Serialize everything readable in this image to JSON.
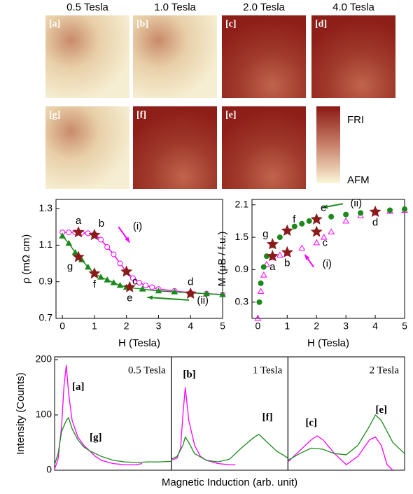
{
  "maps": {
    "columns": [
      "0.5 Tesla",
      "1.0 Tesla",
      "2.0 Tesla",
      "4.0 Tesla"
    ],
    "panels": [
      [
        "[a]",
        "[b]",
        "[c]",
        "[d]"
      ],
      [
        "[g]",
        "[f]",
        "[e]"
      ]
    ],
    "colorbar": [
      "FRI",
      "AFM"
    ]
  },
  "chart_data": [
    {
      "type": "scatter",
      "xlabel": "H (Tesla)",
      "ylabel": "ρ (mΩ cm)",
      "xlim": [
        -0.2,
        5
      ],
      "xticks": [
        0,
        1,
        2,
        3,
        4,
        5
      ],
      "ylim": [
        0.7,
        1.35
      ],
      "yticks": [
        0.7,
        0.9,
        1.1,
        1.3
      ],
      "series": [
        {
          "name": "(i)",
          "color": "#ff00ff",
          "marker": "circle-open",
          "line": true,
          "x": [
            0,
            0.2,
            0.4,
            0.6,
            0.8,
            1.0,
            1.2,
            1.4,
            1.6,
            1.8,
            2.0,
            2.2,
            2.4,
            2.6,
            2.8,
            3.0,
            3.5,
            4.0,
            4.5,
            5.0
          ],
          "values": [
            1.17,
            1.17,
            1.17,
            1.168,
            1.165,
            1.16,
            1.13,
            1.09,
            1.05,
            1.0,
            0.955,
            0.92,
            0.895,
            0.88,
            0.87,
            0.86,
            0.85,
            0.84,
            0.835,
            0.83
          ]
        },
        {
          "name": "(ii)",
          "color": "#1a8a1a",
          "marker": "triangle",
          "line": true,
          "x": [
            0,
            0.2,
            0.4,
            0.6,
            0.8,
            1.0,
            1.2,
            1.4,
            1.6,
            1.8,
            2.0,
            2.5,
            3.0,
            3.5,
            4.0,
            4.5,
            5.0
          ],
          "values": [
            1.15,
            1.11,
            1.06,
            1.02,
            0.98,
            0.945,
            0.925,
            0.91,
            0.895,
            0.88,
            0.87,
            0.86,
            0.85,
            0.845,
            0.84,
            0.835,
            0.83
          ]
        },
        {
          "color": "#8b1a1a",
          "marker": "star",
          "labels": [
            "a",
            "b",
            "c",
            "d",
            "e",
            "f",
            "g"
          ],
          "x": [
            0.5,
            1.0,
            2.0,
            4.0,
            2.1,
            1.0,
            0.5
          ],
          "values": [
            1.17,
            1.155,
            0.955,
            0.835,
            0.87,
            0.945,
            1.035
          ]
        }
      ]
    },
    {
      "type": "scatter",
      "xlabel": "H (Tesla)",
      "ylabel": "M (μB / f.u.)",
      "xlim": [
        -0.2,
        5
      ],
      "xticks": [
        0,
        1,
        2,
        3,
        4,
        5
      ],
      "ylim": [
        0,
        2.2
      ],
      "yticks": [
        0.3,
        0.9,
        1.5,
        2.1
      ],
      "series": [
        {
          "name": "(i)",
          "color": "#ff00ff",
          "marker": "triangle-open",
          "line": false,
          "x": [
            0,
            0.1,
            0.2,
            0.3,
            0.5,
            0.75,
            1.0,
            1.5,
            2.0,
            2.25,
            2.5,
            3.0,
            3.5,
            4.0,
            4.5,
            5.0
          ],
          "values": [
            0,
            0.5,
            0.8,
            1.0,
            1.12,
            1.17,
            1.2,
            1.3,
            1.4,
            1.5,
            1.6,
            1.8,
            1.9,
            1.95,
            1.98,
            2.0
          ]
        },
        {
          "name": "(ii)",
          "color": "#1a8a1a",
          "marker": "dot",
          "line": false,
          "x": [
            0.05,
            0.1,
            0.2,
            0.3,
            0.5,
            0.75,
            1.0,
            1.25,
            1.5,
            1.75,
            2.0,
            2.5,
            3.0,
            3.5,
            4.0,
            4.5,
            5.0
          ],
          "values": [
            0.3,
            0.65,
            0.95,
            1.15,
            1.35,
            1.5,
            1.62,
            1.7,
            1.75,
            1.8,
            1.83,
            1.88,
            1.92,
            1.95,
            1.97,
            2.0,
            2.02
          ]
        },
        {
          "color": "#8b1a1a",
          "marker": "star",
          "labels": [
            "a",
            "b",
            "c",
            "d",
            "e",
            "f",
            "g"
          ],
          "x": [
            0.5,
            1.0,
            2.0,
            4.0,
            2.0,
            1.0,
            0.5
          ],
          "values": [
            1.15,
            1.22,
            1.6,
            1.97,
            1.83,
            1.62,
            1.37
          ]
        }
      ]
    },
    {
      "type": "line",
      "xlabel": "Magnetic Induction (arb. unit)",
      "ylabel": "Intensity (Counts)",
      "xlim": [
        0,
        1
      ],
      "ylim": [
        0,
        205
      ],
      "yticks": [
        0,
        100,
        200
      ],
      "panels": [
        {
          "title": "0.5 Tesla",
          "series": [
            {
              "name": "[a]",
              "color": "#ff00ff",
              "x": [
                0,
                0.03,
                0.06,
                0.08,
                0.1,
                0.12,
                0.15,
                0.2,
                0.25,
                0.3,
                0.35,
                0.4,
                0.5,
                0.6,
                0.7,
                0.75
              ],
              "values": [
                2,
                20,
                80,
                150,
                190,
                140,
                90,
                60,
                45,
                35,
                25,
                18,
                12,
                10,
                10,
                12
              ]
            },
            {
              "name": "[g]",
              "color": "#1a8a1a",
              "x": [
                0,
                0.03,
                0.06,
                0.1,
                0.12,
                0.15,
                0.2,
                0.25,
                0.3,
                0.4,
                0.5,
                0.6,
                0.7,
                0.8,
                0.9,
                1.0
              ],
              "values": [
                10,
                30,
                70,
                90,
                95,
                75,
                55,
                42,
                35,
                25,
                18,
                15,
                14,
                15,
                15,
                16
              ]
            }
          ]
        },
        {
          "title": "1 Tesla",
          "series": [
            {
              "name": "[b]",
              "color": "#ff00ff",
              "x": [
                0,
                0.05,
                0.08,
                0.1,
                0.12,
                0.15,
                0.2,
                0.25,
                0.3,
                0.35,
                0.4,
                0.5,
                0.55
              ],
              "values": [
                18,
                22,
                40,
                100,
                150,
                90,
                45,
                25,
                18,
                15,
                12,
                10,
                10
              ]
            },
            {
              "name": "[f]",
              "color": "#1a8a1a",
              "x": [
                0,
                0.05,
                0.1,
                0.12,
                0.15,
                0.2,
                0.3,
                0.4,
                0.5,
                0.6,
                0.7,
                0.75,
                0.8,
                0.9,
                1.0
              ],
              "values": [
                20,
                25,
                45,
                60,
                50,
                30,
                18,
                15,
                20,
                40,
                58,
                65,
                55,
                35,
                22
              ]
            }
          ]
        },
        {
          "title": "2 Tesla",
          "series": [
            {
              "name": "[c]",
              "color": "#ff00ff",
              "x": [
                0,
                0.1,
                0.2,
                0.25,
                0.3,
                0.4,
                0.5,
                0.6,
                0.7,
                0.75,
                0.8,
                0.85,
                0.9
              ],
              "values": [
                15,
                35,
                55,
                62,
                55,
                30,
                10,
                25,
                55,
                60,
                45,
                10,
                0
              ]
            },
            {
              "name": "[e]",
              "color": "#1a8a1a",
              "x": [
                0,
                0.1,
                0.2,
                0.3,
                0.4,
                0.5,
                0.6,
                0.7,
                0.75,
                0.8,
                0.85,
                0.9,
                1.0
              ],
              "values": [
                18,
                30,
                40,
                38,
                30,
                28,
                45,
                80,
                100,
                90,
                70,
                50,
                30
              ]
            }
          ]
        }
      ]
    }
  ]
}
